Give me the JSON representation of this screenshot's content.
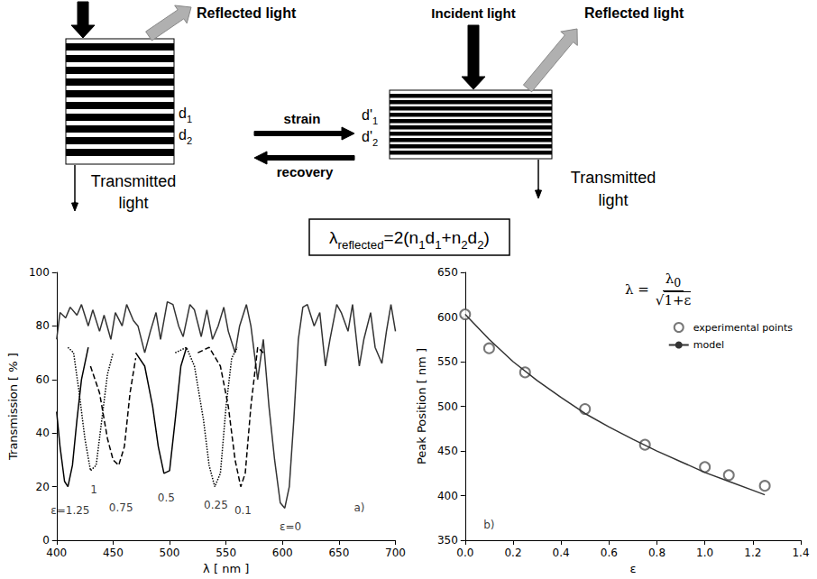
{
  "diagram": {
    "left_stack": {
      "reflected_label": "Reflected light",
      "transmitted_label": "Transmitted light",
      "layers": [
        [
          {
            "text": "d"
          },
          {
            "text": "1",
            "sub": true
          }
        ],
        [
          {
            "text": "d"
          },
          {
            "text": "2",
            "sub": true
          }
        ]
      ]
    },
    "transition": {
      "forward": "strain",
      "backward": "recovery"
    },
    "right_stack": {
      "incident_label": "Incident light",
      "reflected_label": "Reflected light",
      "transmitted_label": "Transmitted light",
      "layers": [
        [
          {
            "text": "d'"
          },
          {
            "text": "1",
            "sub": true
          }
        ],
        [
          {
            "text": "d'"
          },
          {
            "text": "2",
            "sub": true
          }
        ]
      ]
    },
    "formula": [
      {
        "text": "λ"
      },
      {
        "text": "reflected",
        "sub": true
      },
      {
        "text": "=2(n"
      },
      {
        "text": "1",
        "sub": true
      },
      {
        "text": "d"
      },
      {
        "text": "1",
        "sub": true
      },
      {
        "text": "+n"
      },
      {
        "text": "2",
        "sub": true
      },
      {
        "text": "d"
      },
      {
        "text": "2",
        "sub": true
      },
      {
        "text": ")"
      }
    ]
  },
  "chart_data": [
    {
      "type": "line",
      "x_label": "λ [ nm ]",
      "y_label": "Transmission [ % ]",
      "xlim": [
        400,
        700
      ],
      "xticks": [
        400,
        450,
        500,
        550,
        600,
        650,
        700
      ],
      "ylim": [
        0,
        100
      ],
      "yticks": [
        0,
        20,
        40,
        60,
        80,
        100
      ],
      "grid": false,
      "marker": "none",
      "series": [
        {
          "color": "#333333",
          "line_style": "solid",
          "x": [
            400,
            403,
            408,
            412,
            418,
            422,
            428,
            432,
            438,
            442,
            448,
            452,
            458,
            462,
            468,
            472,
            478,
            483,
            488,
            492,
            498,
            503,
            508,
            512,
            518,
            522,
            528,
            533,
            538,
            543,
            548,
            552,
            558,
            562,
            568,
            572,
            578,
            583,
            588,
            593,
            598,
            602,
            606,
            610,
            614,
            618,
            622,
            628,
            633,
            638,
            642,
            648,
            652,
            658,
            662,
            668,
            672,
            678,
            682,
            688,
            692,
            696,
            700
          ],
          "values": [
            75,
            85,
            83,
            87,
            84,
            88,
            80,
            86,
            78,
            84,
            75,
            85,
            80,
            88,
            82,
            80,
            70,
            78,
            85,
            75,
            89,
            88,
            80,
            76,
            88,
            86,
            76,
            86,
            75,
            80,
            87,
            78,
            70,
            80,
            88,
            80,
            60,
            75,
            50,
            30,
            14,
            12,
            20,
            45,
            75,
            87,
            88,
            80,
            85,
            65,
            75,
            88,
            85,
            78,
            88,
            65,
            75,
            85,
            72,
            66,
            78,
            88,
            78
          ]
        },
        {
          "color": "#000000",
          "line_style": "dashed",
          "x": [
            525,
            535,
            545,
            552,
            558,
            563,
            567,
            572,
            578,
            583
          ],
          "values": [
            70,
            72,
            65,
            50,
            30,
            20,
            25,
            50,
            72,
            70
          ]
        },
        {
          "color": "#000000",
          "line_style": "dotted",
          "x": [
            505,
            515,
            522,
            530,
            535,
            540,
            545,
            550,
            555,
            560
          ],
          "values": [
            70,
            72,
            65,
            45,
            28,
            20,
            25,
            50,
            68,
            72
          ]
        },
        {
          "color": "#000000",
          "line_style": "solid",
          "x": [
            470,
            478,
            485,
            490,
            495,
            500,
            505,
            510,
            515
          ],
          "values": [
            70,
            65,
            50,
            35,
            25,
            26,
            45,
            65,
            72
          ]
        },
        {
          "color": "#000000",
          "line_style": "dashed",
          "x": [
            430,
            438,
            445,
            450,
            455,
            460,
            465,
            470
          ],
          "values": [
            65,
            55,
            38,
            30,
            28,
            35,
            55,
            68
          ]
        },
        {
          "color": "#000000",
          "line_style": "dotted",
          "x": [
            410,
            415,
            420,
            425,
            430,
            435,
            440,
            445,
            450
          ],
          "values": [
            72,
            70,
            55,
            38,
            26,
            28,
            45,
            62,
            70
          ]
        },
        {
          "color": "#000000",
          "line_style": "solid",
          "x": [
            400,
            403,
            407,
            410,
            414,
            418,
            422,
            428
          ],
          "values": [
            48,
            35,
            22,
            20,
            28,
            45,
            60,
            72
          ]
        }
      ],
      "annotations": [
        {
          "text": "ε=1.25",
          "x": 412,
          "y": 11
        },
        {
          "text": "1",
          "x": 433,
          "y": 19
        },
        {
          "text": "0.75",
          "x": 457,
          "y": 12
        },
        {
          "text": "0.5",
          "x": 497,
          "y": 16
        },
        {
          "text": "0.25",
          "x": 541,
          "y": 13
        },
        {
          "text": "0.1",
          "x": 565,
          "y": 11
        },
        {
          "text": "ε=0",
          "x": 607,
          "y": 5
        },
        {
          "text": "a)",
          "x": 668,
          "y": 12
        }
      ]
    },
    {
      "type": "scatter",
      "x_label": "ε",
      "y_label": "Peak Position [ nm ]",
      "xlim": [
        0,
        1.4
      ],
      "xticks": [
        {
          "value": 0,
          "label": "0.0"
        },
        0.2,
        0.4,
        0.6,
        0.8,
        {
          "value": 1,
          "label": "1.0"
        },
        1.2,
        1.4
      ],
      "ylim": [
        350,
        650
      ],
      "yticks": [
        350,
        400,
        450,
        500,
        550,
        600,
        650
      ],
      "grid": false,
      "legend": "upper right",
      "formula": {
        "lhs": "λ =",
        "numerator": [
          {
            "text": "λ"
          },
          {
            "text": "0",
            "sub": true
          }
        ],
        "denominator": [
          {
            "text": "√"
          },
          {
            "text": "1+ε",
            "overline": true
          }
        ]
      },
      "series": [
        {
          "name": "experimental points",
          "type": "scatter",
          "marker": "circle",
          "color": "#555555",
          "x": [
            0,
            0.1,
            0.25,
            0.5,
            0.75,
            1.0,
            1.1,
            1.25
          ],
          "values": [
            603,
            565,
            538,
            497,
            457,
            432,
            423,
            411
          ]
        },
        {
          "name": "model",
          "type": "line",
          "marker": "none",
          "line_style": "solid",
          "color": "#333333",
          "x": [
            0,
            0.1,
            0.2,
            0.3,
            0.4,
            0.5,
            0.6,
            0.7,
            0.8,
            0.9,
            1.0,
            1.1,
            1.2,
            1.25
          ],
          "values": [
            603,
            575,
            550,
            529,
            510,
            492,
            477,
            463,
            450,
            438,
            426,
            416,
            406,
            401
          ]
        }
      ],
      "annotations": [
        {
          "text": "b)",
          "x": 0.1,
          "y": 367
        }
      ]
    }
  ]
}
